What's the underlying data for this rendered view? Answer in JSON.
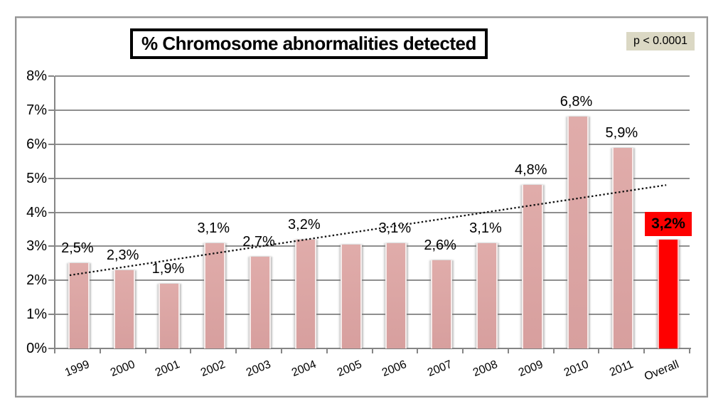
{
  "title": "% Chromosome abnormalities detected",
  "annotation": {
    "p_value": "p < 0.0001"
  },
  "colors": {
    "bar_fill_top": "#e0acaa",
    "bar_fill_bottom": "#d79f9e",
    "bar_edge": "#f5ebea",
    "overall_red": "#fe0000",
    "overall_label_background": "#fe0000",
    "gridline": "#8f8f8f",
    "axis": "#858585",
    "frame_border": "#949494",
    "p_box_background": "#dbd8c4",
    "trend_line": "#111111",
    "text": "#000000"
  },
  "chart_data": {
    "type": "bar",
    "title": "% Chromosome abnormalities detected",
    "categories": [
      "1999",
      "2000",
      "2001",
      "2002",
      "2003",
      "2004",
      "2005",
      "2006",
      "2007",
      "2008",
      "2009",
      "2010",
      "2011",
      "Overall"
    ],
    "values": [
      2.5,
      2.3,
      1.9,
      3.1,
      2.7,
      3.2,
      3.05,
      3.1,
      2.6,
      3.1,
      4.8,
      6.8,
      5.9,
      3.2
    ],
    "bar_labels": [
      "2,5%",
      "2,3%",
      "1,9%",
      "3,1%",
      "2,7%",
      "3,2%",
      "",
      "3,1%",
      "2,6%",
      "3,1%",
      "4,8%",
      "6,8%",
      "5,9%",
      "3,2%"
    ],
    "xlabel": "",
    "ylabel": "",
    "ylim": [
      0,
      8
    ],
    "ytick_labels": [
      "0%",
      "1%",
      "2%",
      "3%",
      "4%",
      "5%",
      "6%",
      "7%",
      "8%"
    ],
    "grid": true,
    "legend": false,
    "annotation": "p < 0.0001",
    "highlight": {
      "category": "Overall"
    },
    "trendline": {
      "style": "dotted",
      "start_value": 2.15,
      "end_value": 4.8
    }
  }
}
